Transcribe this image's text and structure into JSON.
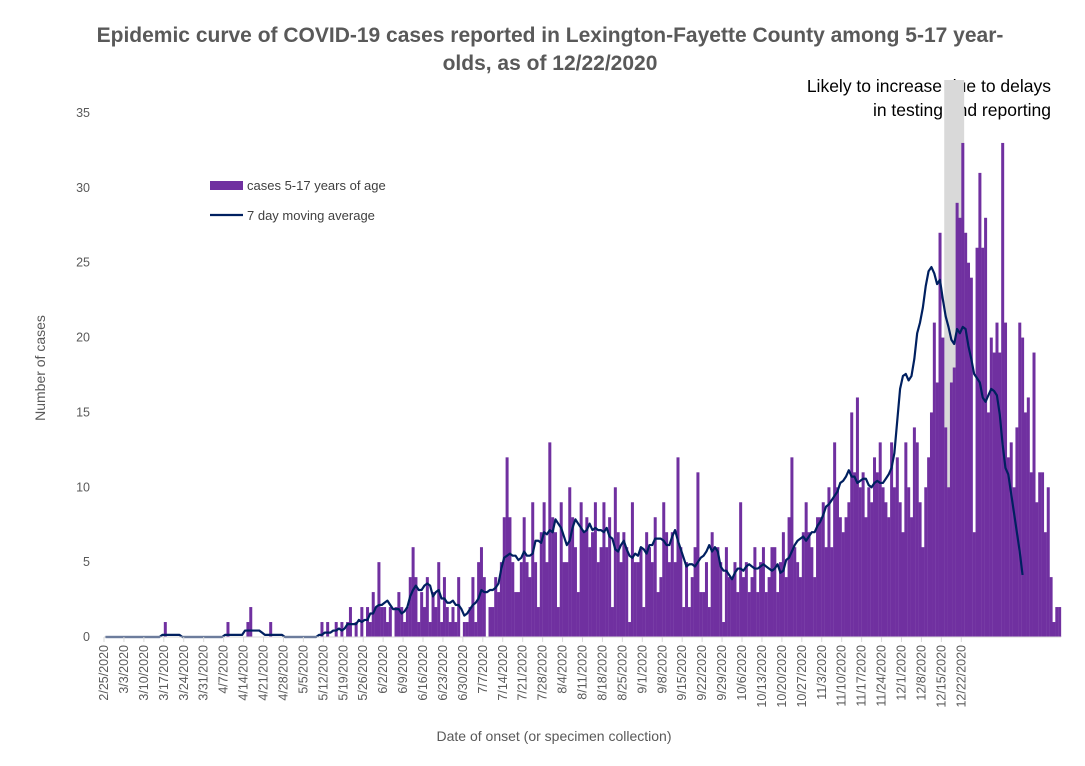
{
  "chart_data": {
    "type": "bar",
    "title": "Epidemic curve of COVID-19 cases reported in Lexington-Fayette County among 5-17 year-olds, as of 12/22/2020",
    "xlabel": "Date of onset (or specimen collection)",
    "ylabel": "Number of cases",
    "ylim": [
      0,
      35
    ],
    "yticks": [
      "0",
      "5",
      "10",
      "15",
      "20",
      "25",
      "30",
      "35"
    ],
    "x_start": "2/25/2020",
    "x_end": "12/22/2020",
    "xtick_labels": [
      "2/25/2020",
      "3/3/2020",
      "3/10/2020",
      "3/17/2020",
      "3/24/2020",
      "3/31/2020",
      "4/7/2020",
      "4/14/2020",
      "4/21/2020",
      "4/28/2020",
      "5/5/2020",
      "5/12/2020",
      "5/19/2020",
      "5/26/2020",
      "6/2/2020",
      "6/9/2020",
      "6/16/2020",
      "6/23/2020",
      "6/30/2020",
      "7/7/2020",
      "7/14/2020",
      "7/21/2020",
      "7/28/2020",
      "8/4/2020",
      "8/11/2020",
      "8/18/2020",
      "8/25/2020",
      "9/1/2020",
      "9/8/2020",
      "9/15/2020",
      "9/22/2020",
      "9/29/2020",
      "10/6/2020",
      "10/13/2020",
      "10/20/2020",
      "10/27/2020",
      "11/3/2020",
      "11/10/2020",
      "11/17/2020",
      "11/24/2020",
      "12/1/2020",
      "12/8/2020",
      "12/15/2020",
      "12/22/2020"
    ],
    "grid": false,
    "legend_position": "upper-left",
    "shaded_region": {
      "from": "12/16/2020",
      "to": "12/22/2020",
      "color": "#d9d9d9",
      "note": "Likely to increase due to delays in testing and reporting"
    },
    "series": [
      {
        "name": "cases 5-17 years of age",
        "type": "bar",
        "color": "#7030a0",
        "values": [
          0,
          0,
          0,
          0,
          0,
          0,
          0,
          0,
          0,
          0,
          0,
          0,
          0,
          0,
          0,
          0,
          0,
          0,
          0,
          0,
          0,
          1,
          0,
          0,
          0,
          0,
          0,
          0,
          0,
          0,
          0,
          0,
          0,
          0,
          0,
          0,
          0,
          0,
          0,
          0,
          0,
          0,
          0,
          1,
          0,
          0,
          0,
          0,
          0,
          0,
          1,
          2,
          0,
          0,
          0,
          0,
          0,
          0,
          1,
          0,
          0,
          0,
          0,
          0,
          0,
          0,
          0,
          0,
          0,
          0,
          0,
          0,
          0,
          0,
          0,
          0,
          1,
          0,
          1,
          0,
          0,
          1,
          0,
          1,
          0,
          1,
          2,
          0,
          1,
          0,
          2,
          0,
          2,
          1,
          3,
          2,
          5,
          2,
          2,
          1,
          2,
          0,
          2,
          3,
          2,
          1,
          2,
          4,
          6,
          4,
          1,
          3,
          2,
          4,
          1,
          3,
          2,
          5,
          1,
          4,
          2,
          1,
          2,
          1,
          4,
          0,
          1,
          1,
          2,
          4,
          1,
          5,
          6,
          4,
          0,
          2,
          2,
          4,
          3,
          5,
          8,
          12,
          8,
          5,
          3,
          3,
          5,
          8,
          5,
          4,
          9,
          5,
          2,
          7,
          9,
          5,
          13,
          8,
          7,
          2,
          9,
          5,
          5,
          10,
          8,
          6,
          3,
          9,
          7,
          8,
          6,
          7,
          9,
          5,
          6,
          9,
          6,
          8,
          2,
          10,
          7,
          5,
          7,
          6,
          1,
          9,
          5,
          5,
          6,
          2,
          7,
          6,
          5,
          8,
          3,
          4,
          9,
          7,
          5,
          7,
          5,
          12,
          6,
          2,
          5,
          2,
          4,
          6,
          11,
          3,
          3,
          5,
          2,
          7,
          6,
          6,
          5,
          1,
          6,
          4,
          4,
          5,
          3,
          9,
          4,
          5,
          3,
          4,
          6,
          3,
          5,
          6,
          3,
          4,
          6,
          6,
          3,
          5,
          7,
          4,
          8,
          12,
          6,
          5,
          4,
          7,
          9,
          7,
          6,
          4,
          8,
          8,
          9,
          6,
          10,
          6,
          13,
          10,
          8,
          7,
          8,
          9,
          15,
          11,
          16,
          10,
          11,
          8,
          10,
          9,
          12,
          11,
          13,
          10,
          9,
          8,
          13,
          10,
          12,
          9,
          7,
          13,
          10,
          8,
          14,
          13,
          9,
          6,
          10,
          12,
          15,
          21,
          17,
          27,
          20,
          14,
          10,
          17,
          18,
          29,
          28,
          33,
          27,
          25,
          24,
          7,
          26,
          31,
          26,
          28,
          15,
          20,
          19,
          21,
          19,
          33,
          21,
          12,
          13,
          10,
          14,
          21,
          20,
          15,
          16,
          11,
          19,
          9,
          11,
          11,
          7,
          10,
          4,
          1,
          2,
          2
        ]
      },
      {
        "name": "7 day moving average",
        "type": "line",
        "color": "#002060",
        "values": [
          0,
          0,
          0,
          0,
          0,
          0,
          0,
          0,
          0,
          0,
          0,
          0,
          0,
          0,
          0,
          0,
          0,
          0,
          0,
          0,
          0.14,
          0.14,
          0.14,
          0.14,
          0.14,
          0.14,
          0.14,
          0,
          0,
          0,
          0,
          0,
          0,
          0,
          0,
          0,
          0,
          0,
          0,
          0,
          0,
          0,
          0.14,
          0.14,
          0.14,
          0.14,
          0.14,
          0.14,
          0.14,
          0.43,
          0.43,
          0.43,
          0.43,
          0.43,
          0.43,
          0.29,
          0.14,
          0.14,
          0.14,
          0.14,
          0.14,
          0.14,
          0.14,
          0,
          0,
          0,
          0,
          0,
          0,
          0,
          0,
          0,
          0,
          0,
          0,
          0.14,
          0.14,
          0.29,
          0.29,
          0.29,
          0.43,
          0.43,
          0.57,
          0.43,
          0.57,
          0.86,
          0.86,
          0.86,
          0.86,
          1.14,
          1,
          1.14,
          1.14,
          1.57,
          1.57,
          2,
          2.14,
          2.14,
          2.29,
          2.43,
          2.14,
          1.86,
          1.86,
          1.86,
          1.57,
          1.71,
          2,
          2.71,
          3.14,
          3.43,
          3.14,
          3.14,
          3.43,
          3.57,
          3.43,
          2.71,
          3,
          3.14,
          2.57,
          2.57,
          2.29,
          2.29,
          2.43,
          2.14,
          2.14,
          1.86,
          1.43,
          1.57,
          1.86,
          2.14,
          2.29,
          2.57,
          3.14,
          3,
          3,
          3.14,
          3.14,
          3.29,
          3.57,
          4.57,
          5.29,
          5.43,
          5.57,
          5.43,
          5.43,
          5.14,
          5.29,
          5.71,
          5.43,
          5.43,
          5.57,
          6.43,
          6.43,
          6.29,
          7,
          6.86,
          7.14,
          7,
          7.86,
          7.57,
          7.29,
          6.71,
          6.14,
          6.43,
          7.29,
          7.86,
          7.57,
          7.29,
          7,
          7.14,
          7.57,
          7.14,
          7.29,
          7.14,
          7.14,
          7,
          7.29,
          6.71,
          6.57,
          5.86,
          5.71,
          6.14,
          6.43,
          5.86,
          5.43,
          5.29,
          5.57,
          5.43,
          6,
          5.86,
          5.57,
          6.14,
          6.14,
          6.57,
          6.57,
          6.57,
          6.43,
          6.14,
          6.14,
          6.71,
          7.14,
          6.43,
          5.86,
          5.29,
          4.71,
          4.86,
          4.86,
          4.71,
          5,
          5.29,
          5.43,
          5.71,
          6.14,
          5.71,
          6,
          5.71,
          4.71,
          4.43,
          4.43,
          4.14,
          3.86,
          4.29,
          4.57,
          4.57,
          4.43,
          4.71,
          4.86,
          4.71,
          4.57,
          4.57,
          4.71,
          4.86,
          4.71,
          4.57,
          4.43,
          4.57,
          4.86,
          4.29,
          4.43,
          5.14,
          5.29,
          5.71,
          6.14,
          6.43,
          6.57,
          6.71,
          6.43,
          6.71,
          7,
          7,
          7.43,
          7.71,
          8.14,
          8.71,
          8.86,
          9.14,
          9.43,
          9.71,
          10.29,
          10.43,
          10.71,
          11.14,
          10.71,
          10.71,
          10.29,
          10.43,
          10.57,
          10.57,
          10.14,
          10,
          10.29,
          10.43,
          10.29,
          10.29,
          10.57,
          10.86,
          11.29,
          12.29,
          14.43,
          16.57,
          17.43,
          17.57,
          17.14,
          17.43,
          18.57,
          20.29,
          21,
          22,
          23.43,
          24.43,
          24.71,
          24.29,
          23.57,
          23.86,
          22.57,
          21.43,
          20.71,
          19.86,
          19.57,
          20.57,
          20.29,
          20.71,
          20.57,
          19.43,
          18.57,
          17.57,
          17.29,
          17,
          16,
          15.71,
          16.14,
          16.57,
          16.43,
          16.14,
          14.86,
          12.86,
          11.29,
          10.86,
          9.57,
          8.29,
          7,
          5.71,
          4.14
        ]
      }
    ]
  }
}
